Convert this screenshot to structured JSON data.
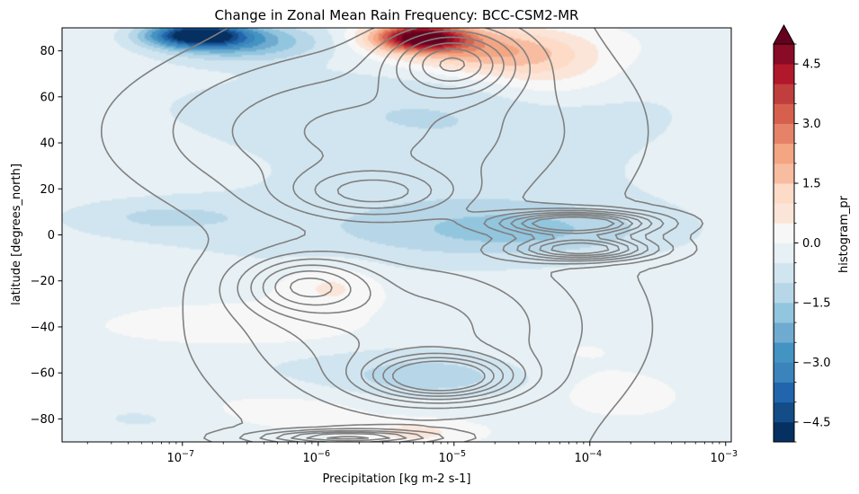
{
  "chart_data": {
    "type": "heatmap",
    "title": "Change in Zonal Mean Rain Frequency: BCC-CSM2-MR",
    "xlabel": "Precipitation [kg m-2 s-1]",
    "ylabel": "latitude [degrees_north]",
    "xscale": "log",
    "xlim": [
      1.3e-08,
      0.0011
    ],
    "ylim": [
      -90,
      90
    ],
    "x_ticks": [
      {
        "value": 1e-07,
        "label": "10",
        "exp": "−7"
      },
      {
        "value": 1e-06,
        "label": "10",
        "exp": "−6"
      },
      {
        "value": 1e-05,
        "label": "10",
        "exp": "−5"
      },
      {
        "value": 0.0001,
        "label": "10",
        "exp": "−4"
      },
      {
        "value": 0.001,
        "label": "10",
        "exp": "−3"
      }
    ],
    "y_ticks": [
      {
        "value": 80,
        "label": "80"
      },
      {
        "value": 60,
        "label": "60"
      },
      {
        "value": 40,
        "label": "40"
      },
      {
        "value": 20,
        "label": "20"
      },
      {
        "value": 0,
        "label": "0"
      },
      {
        "value": -20,
        "label": "−20"
      },
      {
        "value": -40,
        "label": "−40"
      },
      {
        "value": -60,
        "label": "−60"
      },
      {
        "value": -80,
        "label": "−80"
      }
    ],
    "colorbar": {
      "label": "histogram_pr",
      "range": [
        -5.0,
        5.0
      ],
      "levels": [
        -5.0,
        -4.5,
        -4.0,
        -3.5,
        -3.0,
        -2.5,
        -2.0,
        -1.5,
        -1.0,
        -0.5,
        0.0,
        0.5,
        1.0,
        1.5,
        2.0,
        2.5,
        3.0,
        3.5,
        4.0,
        4.5,
        5.0
      ],
      "extend": "max",
      "tick_labels": [
        {
          "value": 4.5,
          "label": "4.5"
        },
        {
          "value": 3.0,
          "label": "3.0"
        },
        {
          "value": 1.5,
          "label": "1.5"
        },
        {
          "value": 0.0,
          "label": "0.0"
        },
        {
          "value": -1.5,
          "label": "−1.5"
        },
        {
          "value": -3.0,
          "label": "−3.0"
        },
        {
          "value": -4.5,
          "label": "−4.5"
        }
      ],
      "colors": [
        "#053061",
        "#134c87",
        "#2166ac",
        "#3a84bb",
        "#4393c3",
        "#6fabd0",
        "#92c5de",
        "#b7d7e8",
        "#d1e5f0",
        "#e7f0f4",
        "#f7f7f7",
        "#fbe5d8",
        "#fddbc7",
        "#f8bca1",
        "#f4a582",
        "#e58267",
        "#d6604d",
        "#c13e3e",
        "#b2182b",
        "#8a0b25",
        "#67001f"
      ]
    },
    "anomalies": [
      {
        "lat": 87,
        "log10_pr": -6.9,
        "value": -4.3,
        "sx": 0.35,
        "sy": 5
      },
      {
        "lat": 84,
        "log10_pr": -6.6,
        "value": -2.2,
        "sx": 0.6,
        "sy": 8
      },
      {
        "lat": 86,
        "log10_pr": -5.25,
        "value": 5.5,
        "sx": 0.35,
        "sy": 6
      },
      {
        "lat": 80,
        "log10_pr": -4.8,
        "value": 2.0,
        "sx": 0.6,
        "sy": 10
      },
      {
        "lat": 72,
        "log10_pr": -4.3,
        "value": 1.0,
        "sx": 0.5,
        "sy": 15
      },
      {
        "lat": 30,
        "log10_pr": -5.0,
        "value": -0.7,
        "sx": 1.8,
        "sy": 40
      },
      {
        "lat": 2,
        "log10_pr": -4.5,
        "value": -0.9,
        "sx": 0.9,
        "sy": 10
      },
      {
        "lat": 8,
        "log10_pr": -7.2,
        "value": -0.7,
        "sx": 0.7,
        "sy": 8
      },
      {
        "lat": -22,
        "log10_pr": -5.9,
        "value": 0.8,
        "sx": 0.35,
        "sy": 10
      },
      {
        "lat": -42,
        "log10_pr": -6.6,
        "value": 0.4,
        "sx": 0.8,
        "sy": 6
      },
      {
        "lat": -62,
        "log10_pr": -5.2,
        "value": -0.9,
        "sx": 0.6,
        "sy": 8
      },
      {
        "lat": -52,
        "log10_pr": -4.1,
        "value": 0.4,
        "sx": 0.6,
        "sy": 10
      },
      {
        "lat": -68,
        "log10_pr": -3.8,
        "value": 0.6,
        "sx": 0.4,
        "sy": 8
      },
      {
        "lat": -86,
        "log10_pr": -5.3,
        "value": 0.8,
        "sx": 0.4,
        "sy": 5
      },
      {
        "lat": -75,
        "log10_pr": -6.3,
        "value": 0.4,
        "sx": 0.8,
        "sy": 8
      },
      {
        "lat": -80,
        "log10_pr": -7.3,
        "value": -0.5,
        "sx": 0.6,
        "sy": 8
      }
    ],
    "contour_peaks": [
      {
        "lat": 5,
        "log10_pr": -4.1,
        "amp": 9,
        "sx": 0.55,
        "sy": 5
      },
      {
        "lat": -6,
        "log10_pr": -4.05,
        "amp": 8,
        "sx": 0.5,
        "sy": 5
      },
      {
        "lat": -62,
        "log10_pr": -5.1,
        "amp": 8,
        "sx": 0.5,
        "sy": 9
      },
      {
        "lat": -22,
        "log10_pr": -6.1,
        "amp": 5,
        "sx": 0.45,
        "sy": 12
      },
      {
        "lat": 75,
        "log10_pr": -5.0,
        "amp": 6,
        "sx": 0.45,
        "sy": 14
      },
      {
        "lat": 18,
        "log10_pr": -5.6,
        "amp": 4,
        "sx": 0.6,
        "sy": 10
      },
      {
        "lat": -88,
        "log10_pr": -5.8,
        "amp": 6,
        "sx": 0.6,
        "sy": 3
      },
      {
        "lat": -40,
        "log10_pr": -5.3,
        "amp": 3,
        "sx": 1.2,
        "sy": 30
      },
      {
        "lat": 45,
        "log10_pr": -5.8,
        "amp": 3,
        "sx": 1.5,
        "sy": 30
      }
    ],
    "contour_levels": [
      1,
      2,
      3,
      4,
      5,
      6,
      7,
      8
    ]
  }
}
